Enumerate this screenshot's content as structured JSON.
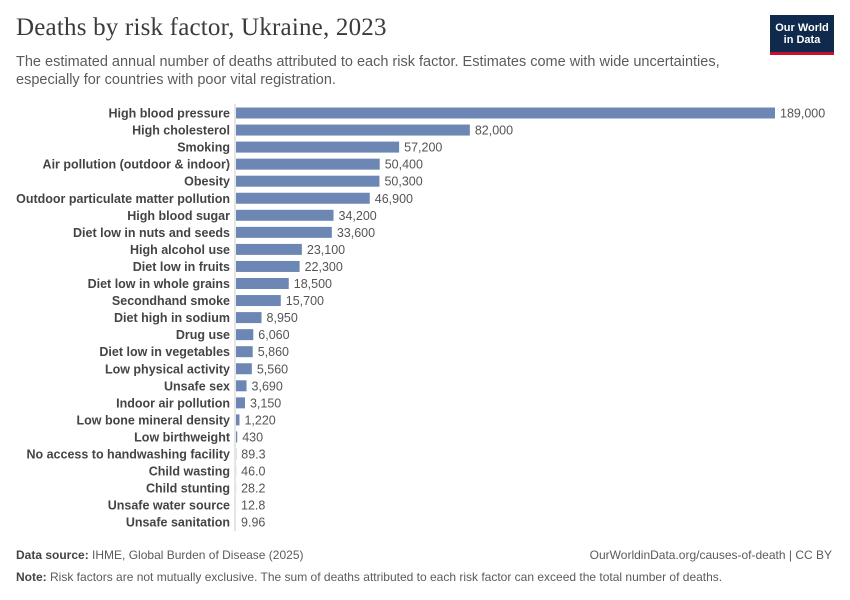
{
  "header": {
    "title": "Deaths by risk factor, Ukraine, 2023",
    "subtitle": "The estimated annual number of deaths attributed to each risk factor. Estimates come with wide uncertainties, especially for countries with poor vital registration.",
    "logo_line1": "Our World",
    "logo_line2": "in Data"
  },
  "chart_data": {
    "type": "bar",
    "orientation": "horizontal",
    "title": "Deaths by risk factor, Ukraine, 2023",
    "subtitle": "The estimated annual number of deaths attributed to each risk factor. Estimates come with wide uncertainties, especially for countries with poor vital registration.",
    "xlabel": "",
    "ylabel": "",
    "color": "#6d87b4",
    "categories": [
      "High blood pressure",
      "High cholesterol",
      "Smoking",
      "Air pollution (outdoor & indoor)",
      "Obesity",
      "Outdoor particulate matter pollution",
      "High blood sugar",
      "Diet low in nuts and seeds",
      "High alcohol use",
      "Diet low in fruits",
      "Diet low in whole grains",
      "Secondhand smoke",
      "Diet high in sodium",
      "Drug use",
      "Diet low in vegetables",
      "Low physical activity",
      "Unsafe sex",
      "Indoor air pollution",
      "Low bone mineral density",
      "Low birthweight",
      "No access to handwashing facility",
      "Child wasting",
      "Child stunting",
      "Unsafe water source",
      "Unsafe sanitation"
    ],
    "values": [
      189000,
      82000,
      57200,
      50400,
      50300,
      46900,
      34200,
      33600,
      23100,
      22300,
      18500,
      15700,
      8950,
      6060,
      5860,
      5560,
      3690,
      3150,
      1220,
      430,
      89.3,
      46.0,
      28.2,
      12.8,
      9.96
    ],
    "value_labels": [
      "189,000",
      "82,000",
      "57,200",
      "50,400",
      "50,300",
      "46,900",
      "34,200",
      "33,600",
      "23,100",
      "22,300",
      "18,500",
      "15,700",
      "8,950",
      "6,060",
      "5,860",
      "5,560",
      "3,690",
      "3,150",
      "1,220",
      "430",
      "89.3",
      "46.0",
      "28.2",
      "12.8",
      "9.96"
    ]
  },
  "footer": {
    "source_label": "Data source:",
    "source_text": "IHME, Global Burden of Disease (2025)",
    "url_text": "OurWorldinData.org/causes-of-death | CC BY",
    "note_label": "Note:",
    "note_text": "Risk factors are not mutually exclusive. The sum of deaths attributed to each risk factor can exceed the total number of deaths."
  }
}
